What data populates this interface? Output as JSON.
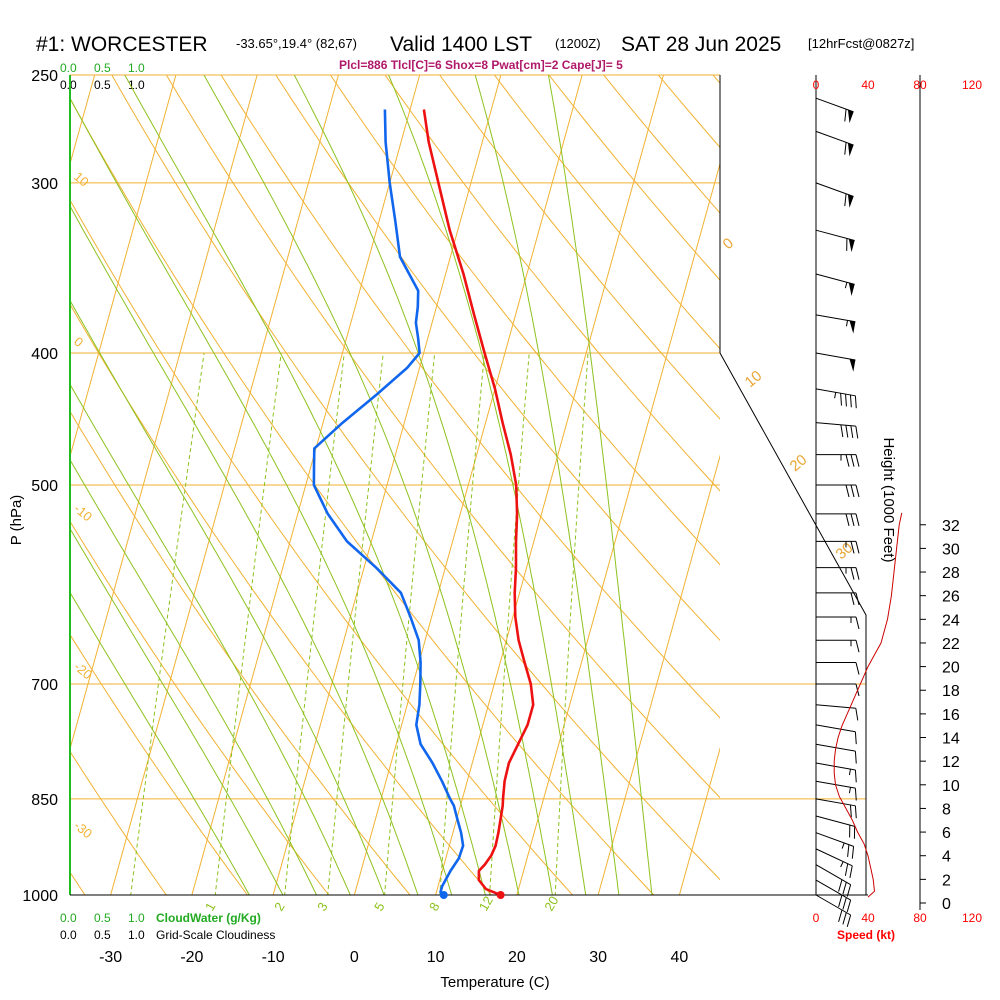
{
  "header": {
    "station": "#1: WORCESTER",
    "coords": "-33.65°,19.4° (82,67)",
    "valid": "Valid 1400 LST",
    "zulu": "(1200Z)",
    "date": "SAT 28 Jun 2025",
    "forecast": "[12hrFcst@0827z]"
  },
  "stats_line": "Plcl=886 Tlcl[C]=6 Shox=8 Pwat[cm]=2 Cape[J]= 5",
  "legend": {
    "cloudwater_ticks": [
      "0.0",
      "0.5",
      "1.0"
    ],
    "cloudwater_label": "CloudWater (g/Kg)",
    "cloudiness_ticks": [
      "0.0",
      "0.5",
      "1.0"
    ],
    "cloudiness_label": "Grid-Scale Cloudiness"
  },
  "axes": {
    "y_label": "P (hPa)",
    "x_label": "Temperature (C)",
    "height_label": "Height (1000 Feet)",
    "speed_label": "Speed (kt)",
    "pressure_ticks": [
      250,
      300,
      400,
      500,
      700,
      850,
      1000
    ],
    "temp_ticks": [
      -30,
      -20,
      -10,
      0,
      10,
      20,
      30,
      40
    ],
    "height_ticks": [
      0,
      2,
      4,
      6,
      8,
      10,
      12,
      14,
      16,
      18,
      20,
      22,
      24,
      26,
      28,
      30,
      32
    ],
    "speed_ticks": [
      0,
      40,
      80,
      120
    ]
  },
  "colors": {
    "temperature": "#ee1111",
    "dewpoint": "#1166ee",
    "isotherm": "#f2b233",
    "dry_adiabat": "#f2b233",
    "moist_adiabat": "#8dc21f",
    "mixing_ratio": "#8dc21f",
    "cloud_water": "#22bb22",
    "speed_profile": "#cc0000"
  },
  "chart_data": {
    "type": "line",
    "title": "#1: WORCESTER",
    "xlabel": "Temperature (C)",
    "ylabel": "P (hPa)",
    "y_scale": "log",
    "xlim": [
      -35,
      45
    ],
    "ylim": [
      1000,
      250
    ],
    "series": [
      {
        "name": "Temperature",
        "pressure": [
          1000,
          990,
          975,
          960,
          950,
          935,
          920,
          900,
          880,
          860,
          850,
          825,
          800,
          775,
          750,
          725,
          700,
          675,
          650,
          625,
          600,
          575,
          550,
          525,
          500,
          475,
          450,
          425,
          400,
          375,
          350,
          325,
          300,
          280,
          265
        ],
        "values": [
          18.0,
          16.0,
          14.8,
          14.5,
          15.0,
          15.5,
          15.7,
          15.6,
          15.4,
          15.2,
          15.0,
          14.6,
          14.5,
          15.0,
          15.5,
          15.5,
          14.5,
          13.0,
          11.5,
          10.3,
          9.4,
          8.7,
          7.8,
          7.0,
          5.9,
          4.2,
          2.1,
          0.0,
          -2.5,
          -5.1,
          -7.8,
          -11.0,
          -14.0,
          -16.6,
          -18.3
        ]
      },
      {
        "name": "Dewpoint",
        "pressure": [
          1000,
          995,
          985,
          960,
          940,
          920,
          900,
          880,
          860,
          850,
          825,
          800,
          775,
          750,
          725,
          700,
          675,
          650,
          625,
          600,
          575,
          550,
          525,
          500,
          485,
          470,
          450,
          430,
          410,
          400,
          390,
          380,
          370,
          360,
          340,
          320,
          300,
          280,
          265
        ],
        "values": [
          11.0,
          10.5,
          10.5,
          11.0,
          11.6,
          11.7,
          11.0,
          10.1,
          9.2,
          8.5,
          6.9,
          5.1,
          3.0,
          1.8,
          1.5,
          0.9,
          0.2,
          -0.8,
          -2.6,
          -4.6,
          -8.5,
          -13.0,
          -16.3,
          -19.0,
          -19.6,
          -20.2,
          -17.6,
          -14.5,
          -11.5,
          -10.5,
          -11.2,
          -12.0,
          -12.3,
          -12.8,
          -16.2,
          -18.0,
          -20.0,
          -21.9,
          -23.1
        ]
      }
    ],
    "surface_points": [
      {
        "name": "Temperature",
        "pressure": 1000,
        "value": 18.0
      },
      {
        "name": "Dewpoint",
        "pressure": 1000,
        "value": 11.0
      }
    ],
    "wind_speed_profile": {
      "xlabel": "Speed (kt)",
      "ylabel": "Height (1000 Feet)",
      "xlim": [
        0,
        120
      ],
      "height_kft": [
        0.5,
        1,
        2,
        3,
        4,
        5,
        6,
        7,
        8,
        9,
        10,
        11,
        12,
        13,
        14,
        15,
        16,
        17,
        18,
        19,
        20,
        21,
        22,
        24,
        26,
        28,
        30,
        32,
        33
      ],
      "speed": [
        40,
        45,
        44,
        42,
        40,
        37,
        32,
        28,
        23,
        18,
        15,
        14,
        14,
        15,
        17,
        20,
        24,
        28,
        32,
        36,
        40,
        45,
        50,
        55,
        58,
        60,
        62,
        64,
        66
      ]
    },
    "wind_barbs": {
      "pressure": [
        1000,
        975,
        950,
        925,
        900,
        875,
        850,
        825,
        800,
        775,
        750,
        725,
        700,
        675,
        650,
        625,
        600,
        575,
        550,
        525,
        500,
        475,
        450,
        425,
        400,
        375,
        350,
        325,
        300,
        275,
        260
      ],
      "speed_kt": [
        30,
        30,
        30,
        28,
        25,
        22,
        20,
        18,
        15,
        12,
        10,
        10,
        10,
        10,
        15,
        15,
        20,
        25,
        25,
        30,
        30,
        35,
        40,
        45,
        50,
        55,
        55,
        60,
        60,
        60,
        60
      ],
      "direction_deg": [
        300,
        300,
        300,
        295,
        290,
        285,
        280,
        280,
        280,
        280,
        280,
        275,
        270,
        270,
        270,
        270,
        270,
        270,
        270,
        270,
        270,
        270,
        275,
        280,
        280,
        280,
        285,
        285,
        290,
        290,
        290
      ]
    },
    "isotherm_labels": [
      "0",
      "10",
      "20",
      "30"
    ],
    "mixing_ratio_labels": [
      "1",
      "2",
      "3",
      "5",
      "8",
      "12",
      "20"
    ],
    "adiabat_labels": [
      "10",
      "0",
      "-10",
      "-20",
      "-30"
    ]
  }
}
